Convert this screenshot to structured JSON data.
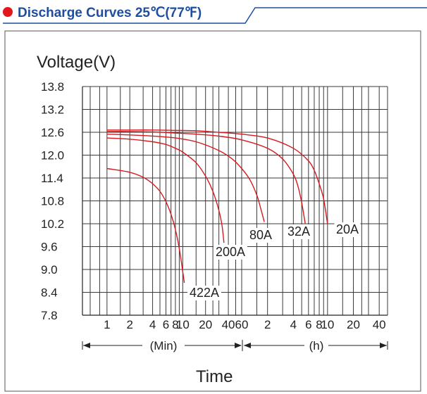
{
  "header": {
    "title": "Discharge Curves 25℃(77℉)",
    "bullet_color": "#e4161c",
    "title_color": "#1f4f9c"
  },
  "chart_data": {
    "type": "line",
    "title": "Discharge Curves 25℃(77℉)",
    "ylabel": "Voltage(V)",
    "xlabel": "Time",
    "x_scale": "log",
    "ylim": [
      7.8,
      13.8
    ],
    "y_ticks": [
      "13.8",
      "13.2",
      "12.6",
      "12.0",
      "11.4",
      "10.8",
      "10.2",
      "9.6",
      "9.0",
      "8.4",
      "7.8"
    ],
    "x_ticks_min": [
      "1",
      "2",
      "4",
      "6",
      "8",
      "10",
      "20",
      "40",
      "60"
    ],
    "x_ticks_h": [
      "2",
      "4",
      "6",
      "8",
      "10",
      "20",
      "40"
    ],
    "x_unit_min": "(Min)",
    "x_unit_h": "(h)",
    "grid": true,
    "curve_color": "#d7191f",
    "series": [
      {
        "name": "422A",
        "x_min": [
          1,
          2,
          3,
          4,
          5,
          6,
          7,
          8,
          9,
          10,
          10.5
        ],
        "y": [
          11.65,
          11.55,
          11.42,
          11.25,
          11.05,
          10.78,
          10.45,
          10.05,
          9.55,
          8.95,
          8.65
        ]
      },
      {
        "name": "200A",
        "x_min": [
          1,
          2,
          4,
          6,
          8,
          10,
          15,
          20,
          25,
          30,
          33,
          35
        ],
        "y": [
          12.45,
          12.42,
          12.35,
          12.28,
          12.18,
          12.08,
          11.8,
          11.45,
          11.05,
          10.55,
          10.15,
          9.7
        ]
      },
      {
        "name": "80A",
        "x_min": [
          1,
          2,
          4,
          8,
          15,
          30,
          45,
          60,
          75,
          90,
          100,
          110
        ],
        "y": [
          12.55,
          12.53,
          12.5,
          12.45,
          12.35,
          12.12,
          11.9,
          11.65,
          11.35,
          10.95,
          10.6,
          10.25
        ]
      },
      {
        "name": "32A",
        "x_min": [
          1,
          2,
          4,
          8,
          15,
          30,
          60,
          120,
          180,
          240,
          270,
          300,
          330
        ],
        "y": [
          12.62,
          12.62,
          12.61,
          12.58,
          12.55,
          12.5,
          12.4,
          12.18,
          11.9,
          11.5,
          11.2,
          10.75,
          10.2
        ]
      },
      {
        "name": "20A",
        "x_min": [
          1,
          2,
          4,
          8,
          15,
          30,
          60,
          120,
          240,
          360,
          420,
          480,
          540,
          600
        ],
        "y": [
          12.66,
          12.66,
          12.66,
          12.65,
          12.64,
          12.6,
          12.55,
          12.45,
          12.18,
          11.85,
          11.6,
          11.25,
          10.85,
          10.2
        ]
      }
    ]
  },
  "footer": {
    "time_label": "Time"
  }
}
